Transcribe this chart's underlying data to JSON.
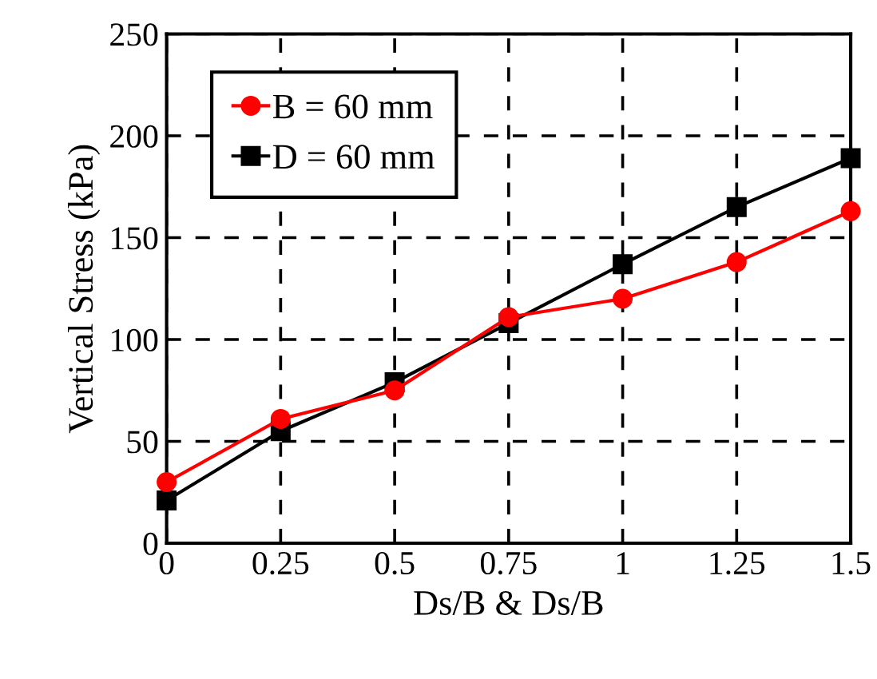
{
  "chart_data": {
    "type": "line",
    "xlabel": "Ds/B & Ds/B",
    "ylabel": "Vertical Stress (kPa)",
    "x": [
      0,
      0.25,
      0.5,
      0.75,
      1,
      1.25,
      1.5
    ],
    "series": [
      {
        "name": "B = 60 mm",
        "color": "#ff0000",
        "marker": "circle",
        "values": [
          30,
          61,
          75,
          111,
          120,
          138,
          163
        ]
      },
      {
        "name": "D = 60 mm",
        "color": "#000000",
        "marker": "square",
        "values": [
          21,
          55,
          79,
          108,
          137,
          165,
          189
        ]
      }
    ],
    "xlim": [
      0,
      1.5
    ],
    "xticks": [
      0,
      0.25,
      0.5,
      0.75,
      1,
      1.25,
      1.5
    ],
    "ylim": [
      0,
      250
    ],
    "yticks": [
      0,
      50,
      100,
      150,
      200,
      250
    ],
    "grid": true,
    "legend": "top left",
    "line_style": "solid"
  }
}
